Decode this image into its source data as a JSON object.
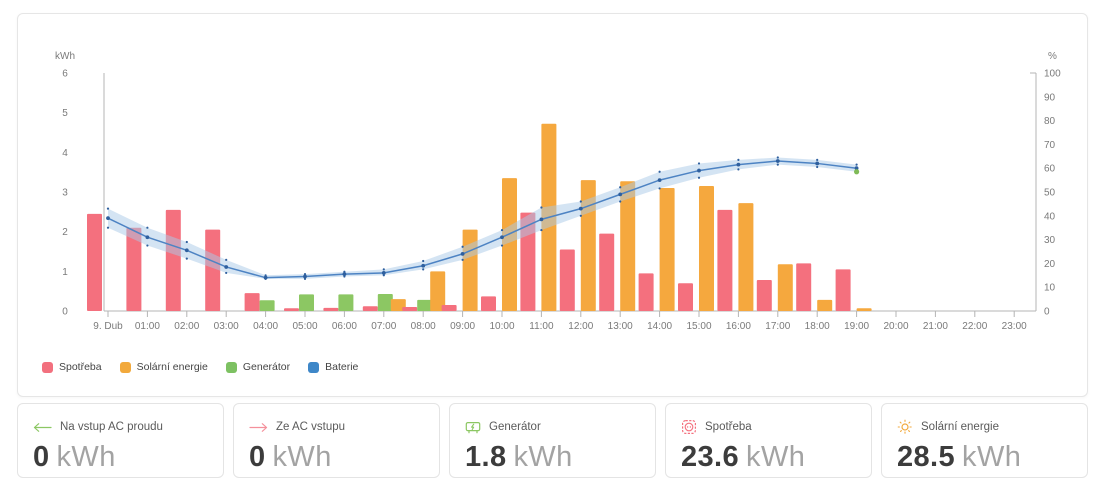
{
  "chart": {
    "y_left": {
      "title": "kWh",
      "ticks": [
        0,
        1,
        2,
        3,
        4,
        5,
        6
      ]
    },
    "y_right": {
      "title": "%",
      "ticks": [
        0,
        10,
        20,
        30,
        40,
        50,
        60,
        70,
        80,
        90,
        100
      ]
    },
    "legend": [
      {
        "label": "Spotřeba",
        "color": "#f2707e"
      },
      {
        "label": "Solární energie",
        "color": "#f2a93c"
      },
      {
        "label": "Generátor",
        "color": "#7dc162"
      },
      {
        "label": "Baterie",
        "color": "#3e87c8"
      }
    ],
    "colors": {
      "axis_line": "#b4b4b4",
      "tick_text": "#7a7a7a",
      "band_fill": "#a9c9e8",
      "line": "#4d83c3",
      "marker": "#2e5f9e"
    }
  },
  "chart_data": {
    "type": "bar",
    "title": "",
    "categories": [
      "9. Dub",
      "01:00",
      "02:00",
      "03:00",
      "04:00",
      "05:00",
      "06:00",
      "07:00",
      "08:00",
      "09:00",
      "10:00",
      "11:00",
      "12:00",
      "13:00",
      "14:00",
      "15:00",
      "16:00",
      "17:00",
      "18:00",
      "19:00",
      "20:00",
      "21:00",
      "22:00",
      "23:00"
    ],
    "ylabel_left": "kWh",
    "ylabel_right": "%",
    "ylim_left": [
      0,
      6
    ],
    "ylim_right": [
      0,
      100
    ],
    "grid": false,
    "legend_position": "bottom-left",
    "series": [
      {
        "name": "Spotřeba",
        "type": "bar",
        "unit": "kWh",
        "color": "#f4707e",
        "values": [
          2.45,
          2.1,
          2.55,
          2.05,
          0.45,
          0.07,
          0.08,
          0.12,
          0.1,
          0.15,
          0.37,
          2.48,
          1.55,
          1.95,
          0.95,
          0.7,
          2.55,
          0.78,
          1.2,
          1.05,
          0,
          0,
          0,
          0
        ]
      },
      {
        "name": "Generátor",
        "type": "bar",
        "unit": "kWh",
        "color": "#8cc763",
        "values": [
          0,
          0,
          0,
          0,
          0.27,
          0.42,
          0.42,
          0.43,
          0.28,
          0,
          0,
          0,
          0,
          0,
          0,
          0,
          0,
          0,
          0,
          0,
          0,
          0,
          0,
          0
        ]
      },
      {
        "name": "Solární energie",
        "type": "bar",
        "unit": "kWh",
        "color": "#f5a83e",
        "values": [
          0,
          0,
          0,
          0,
          0,
          0,
          0,
          0.3,
          1.0,
          2.05,
          3.35,
          4.72,
          3.3,
          3.27,
          3.1,
          3.15,
          2.72,
          1.18,
          0.28,
          0.07,
          0,
          0,
          0,
          0
        ]
      },
      {
        "name": "Baterie",
        "type": "line",
        "unit": "%",
        "axis": "right",
        "color": "#4d83c3",
        "band_color": "#a9c9e8",
        "marker_color": "#2e5f9e",
        "values": [
          39,
          31,
          25.5,
          18.5,
          14,
          14.5,
          15.5,
          16,
          19,
          24,
          31,
          38.5,
          43,
          49,
          55,
          59,
          61.5,
          63,
          62,
          60
        ],
        "upper": [
          43,
          35,
          29,
          21.5,
          15,
          15.5,
          16.5,
          17.5,
          21,
          27,
          34,
          43.5,
          46,
          52,
          58.5,
          62,
          63.5,
          64.5,
          63.5,
          61.5
        ],
        "lower": [
          35,
          27.5,
          22,
          16,
          13.5,
          13.5,
          14.5,
          15,
          17.5,
          21.5,
          27.5,
          34,
          40,
          46,
          51.5,
          56,
          59.5,
          61.5,
          60.5,
          58.5
        ],
        "end_marker": {
          "index": 19,
          "value": 58.5,
          "color": "#7fba57"
        }
      }
    ]
  },
  "cards": [
    {
      "label": "Na vstup AC proudu",
      "value": "0",
      "unit": "kWh",
      "icon": "arrow-left",
      "icon_color": "#8cc763"
    },
    {
      "label": "Ze AC vstupu",
      "value": "0",
      "unit": "kWh",
      "icon": "arrow-right",
      "icon_color": "#f4909b"
    },
    {
      "label": "Generátor",
      "value": "1.8",
      "unit": "kWh",
      "icon": "generator",
      "icon_color": "#8cc763"
    },
    {
      "label": "Spotřeba",
      "value": "23.6",
      "unit": "kWh",
      "icon": "socket",
      "icon_color": "#f4707e"
    },
    {
      "label": "Solární energie",
      "value": "28.5",
      "unit": "kWh",
      "icon": "sun",
      "icon_color": "#f2a93c"
    }
  ]
}
